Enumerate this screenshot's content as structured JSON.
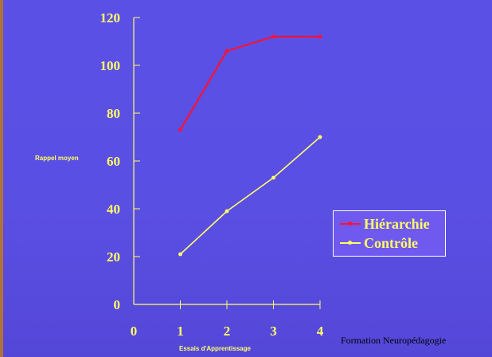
{
  "footer": "Formation Neuropédagogie",
  "colors": {
    "axis": "#ffff66",
    "hierarchie": "#ff1133",
    "controle": "#ffff66"
  },
  "chart_data": {
    "type": "line",
    "x": [
      1,
      2,
      3,
      4
    ],
    "x_ticks": [
      0,
      1,
      2,
      3,
      4
    ],
    "y_ticks": [
      0,
      20,
      40,
      60,
      80,
      100,
      120
    ],
    "xlim": [
      0,
      4
    ],
    "ylim": [
      0,
      120
    ],
    "xlabel": "Essais d'Apprentissage",
    "ylabel": "Rappel moyen",
    "grid": false,
    "legend_position": "bottom-right",
    "series": [
      {
        "name": "Hiérarchie",
        "values": [
          73,
          106,
          112,
          112
        ]
      },
      {
        "name": "Contrôle",
        "values": [
          21,
          39,
          53,
          70
        ]
      }
    ]
  }
}
